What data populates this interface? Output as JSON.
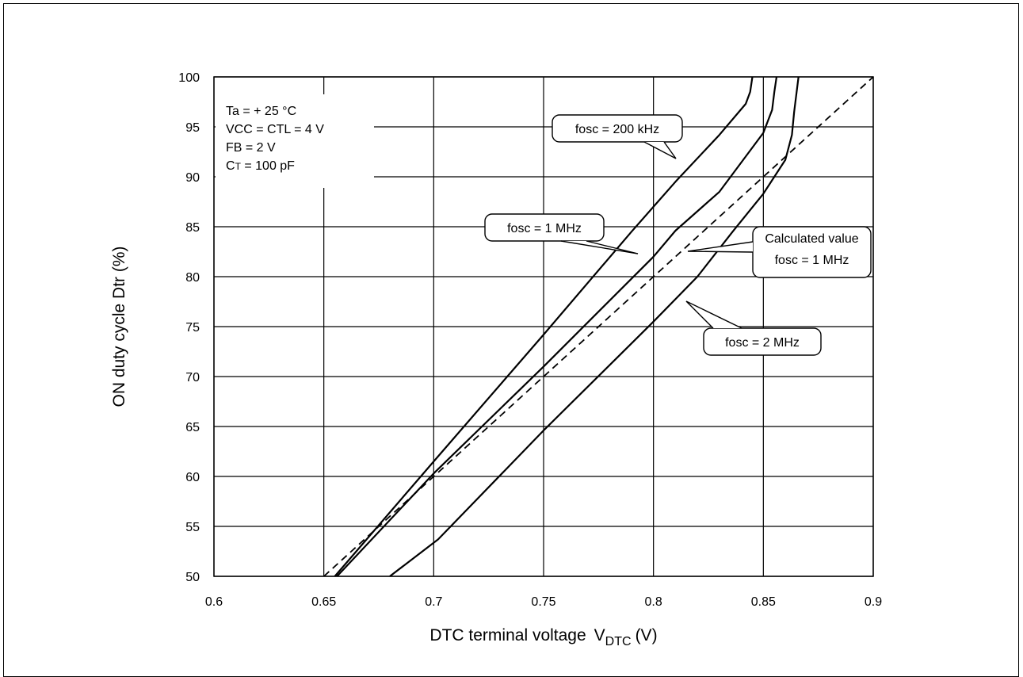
{
  "chart_data": {
    "type": "line",
    "xlabel": "DTC terminal voltage",
    "xlabel_symbol": "V",
    "xlabel_subscript": "DTC",
    "xlabel_unit": "(V)",
    "ylabel": "ON duty cycle  Dtr (%)",
    "xlim": [
      0.6,
      0.9
    ],
    "ylim": [
      50,
      100
    ],
    "x_ticks": [
      "0.6",
      "0.65",
      "0.7",
      "0.75",
      "0.8",
      "0.85",
      "0.9"
    ],
    "y_ticks": [
      "50",
      "55",
      "60",
      "65",
      "70",
      "75",
      "80",
      "85",
      "90",
      "95",
      "100"
    ],
    "x_tick_values": [
      0.6,
      0.65,
      0.7,
      0.75,
      0.8,
      0.85,
      0.9
    ],
    "y_tick_values": [
      50,
      55,
      60,
      65,
      70,
      75,
      80,
      85,
      90,
      95,
      100
    ],
    "grid": true,
    "conditions": [
      "Ta = + 25 °C",
      "VCC = CTL = 4 V",
      "FB = 2 V",
      "CT = 100 pF"
    ],
    "series": [
      {
        "name": "fosc = 200 kHz",
        "style": "solid",
        "points": [
          [
            0.655,
            50
          ],
          [
            0.7,
            61.5
          ],
          [
            0.75,
            74.2
          ],
          [
            0.79,
            84.5
          ],
          [
            0.81,
            89.5
          ],
          [
            0.83,
            94.2
          ],
          [
            0.842,
            97.3
          ],
          [
            0.844,
            98.5
          ],
          [
            0.845,
            100
          ]
        ]
      },
      {
        "name": "fosc = 1 MHz",
        "style": "solid",
        "points": [
          [
            0.656,
            50
          ],
          [
            0.7,
            60.3
          ],
          [
            0.75,
            71
          ],
          [
            0.8,
            82
          ],
          [
            0.81,
            84.6
          ],
          [
            0.83,
            88.5
          ],
          [
            0.85,
            94.4
          ],
          [
            0.854,
            96.7
          ],
          [
            0.855,
            98.5
          ],
          [
            0.856,
            100
          ]
        ]
      },
      {
        "name": "fosc = 2 MHz",
        "style": "solid",
        "points": [
          [
            0.68,
            50
          ],
          [
            0.702,
            53.7
          ],
          [
            0.75,
            64.6
          ],
          [
            0.8,
            75.5
          ],
          [
            0.82,
            80
          ],
          [
            0.836,
            84.5
          ],
          [
            0.85,
            88.3
          ],
          [
            0.86,
            91.7
          ],
          [
            0.863,
            94.2
          ],
          [
            0.864,
            96.5
          ],
          [
            0.866,
            100
          ]
        ]
      },
      {
        "name": "Calculated value",
        "style": "dashed",
        "points": [
          [
            0.65,
            50
          ],
          [
            0.9,
            100
          ]
        ]
      }
    ],
    "annotations": [
      {
        "lines": [
          "fosc = 200 kHz"
        ],
        "target": "fosc = 200 kHz"
      },
      {
        "lines": [
          "fosc = 1 MHz"
        ],
        "target": "fosc = 1 MHz"
      },
      {
        "lines": [
          "Calculated value",
          "fosc = 1 MHz"
        ],
        "target": "Calculated value"
      },
      {
        "lines": [
          "fosc = 2 MHz"
        ],
        "target": "fosc = 2 MHz"
      }
    ]
  }
}
